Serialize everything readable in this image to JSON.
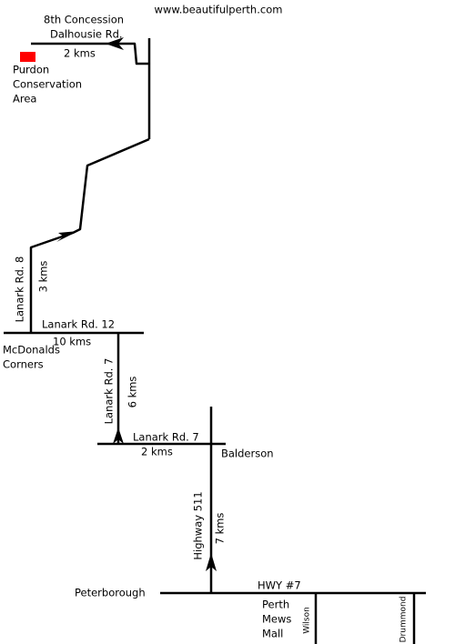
{
  "website": "www.beautifulperth.com",
  "destination_road": [
    "8th Concession",
    "Dalhousie Rd."
  ],
  "destination_distance": "2 kms",
  "destination": [
    "Purdon",
    "Conservation",
    "Area"
  ],
  "lanark_rd_8": {
    "name": "Lanark Rd. 8",
    "distance": "3 kms"
  },
  "lanark_rd_12": {
    "name": "Lanark Rd. 12",
    "distance": "10 kms"
  },
  "mcdonalds_corners": [
    "McDonalds",
    "Corners"
  ],
  "lanark_rd_7_north": {
    "name": "Lanark Rd. 7",
    "distance": "6 kms"
  },
  "lanark_rd_7_east": {
    "name": "Lanark Rd. 7",
    "distance": "2 kms"
  },
  "balderson": "Balderson",
  "highway_511": {
    "name": "Highway 511",
    "distance": "7 kms"
  },
  "peterborough": "Peterborough",
  "hwy_7": "HWY #7",
  "perth_mews_mall": [
    "Perth",
    "Mews",
    "Mall"
  ],
  "wilson": "Wilson",
  "drummond": "Drummond"
}
